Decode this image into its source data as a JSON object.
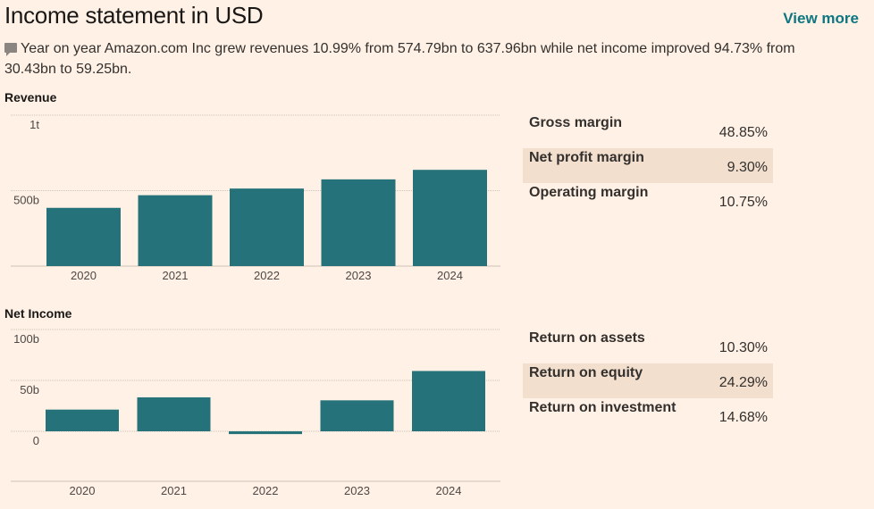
{
  "header": {
    "title": "Income statement in USD",
    "view_more": "View more"
  },
  "summary": {
    "icon": "comment-icon",
    "text": "Year on year Amazon.com Inc grew revenues 10.99% from 574.79bn to 637.96bn while net income improved 94.73% from 30.43bn to 59.25bn."
  },
  "colors": {
    "bar": "#26727a",
    "background": "#fff1e5",
    "highlight": "#f2dfce",
    "accent": "#0d7680"
  },
  "chart_data": [
    {
      "type": "bar",
      "title": "Revenue",
      "categories": [
        "2020",
        "2021",
        "2022",
        "2023",
        "2024"
      ],
      "values": [
        386.06,
        469.82,
        513.98,
        574.79,
        637.96
      ],
      "unit": "bn",
      "ylim": [
        0,
        1000
      ],
      "yticks": [
        {
          "value": 1000,
          "label": "1t"
        },
        {
          "value": 500,
          "label": "500b"
        }
      ],
      "grid": true
    },
    {
      "type": "bar",
      "title": "Net Income",
      "categories": [
        "2020",
        "2021",
        "2022",
        "2023",
        "2024"
      ],
      "values": [
        21.33,
        33.36,
        -2.72,
        30.43,
        59.25
      ],
      "unit": "bn",
      "ylim": [
        -100,
        100
      ],
      "yticks": [
        {
          "value": 100,
          "label": "100b"
        },
        {
          "value": 50,
          "label": "50b"
        },
        {
          "value": 0,
          "label": "0"
        }
      ],
      "grid": true
    }
  ],
  "margins": [
    {
      "label": "Gross margin",
      "value": "48.85%"
    },
    {
      "label": "Net profit margin",
      "value": "9.30%"
    },
    {
      "label": "Operating margin",
      "value": "10.75%"
    }
  ],
  "returns": [
    {
      "label": "Return on assets",
      "value": "10.30%"
    },
    {
      "label": "Return on equity",
      "value": "24.29%"
    },
    {
      "label": "Return on investment",
      "value": "14.68%"
    }
  ]
}
